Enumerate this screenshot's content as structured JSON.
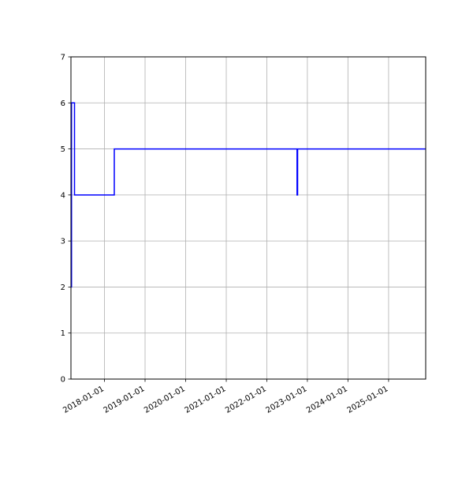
{
  "chart_data": {
    "type": "line",
    "step": "post",
    "title": "",
    "xlabel": "",
    "ylabel": "",
    "xlim": [
      "2017-03-05",
      "2025-12-01"
    ],
    "ylim": [
      0,
      7
    ],
    "grid": true,
    "line_color": "#0000ff",
    "x_ticks": [
      "2018-01-01",
      "2019-01-01",
      "2020-01-01",
      "2021-01-01",
      "2022-01-01",
      "2023-01-01",
      "2024-01-01",
      "2025-01-01"
    ],
    "y_ticks": [
      "0",
      "1",
      "2",
      "3",
      "4",
      "5",
      "6",
      "7"
    ],
    "series": [
      {
        "x": [
          "2017-03-05",
          "2017-03-10",
          "2017-04-06",
          "2018-03-30",
          "2022-09-30",
          "2022-10-05",
          "2025-12-01"
        ],
        "y": [
          2,
          6,
          4,
          5,
          4,
          5,
          5
        ]
      }
    ]
  }
}
